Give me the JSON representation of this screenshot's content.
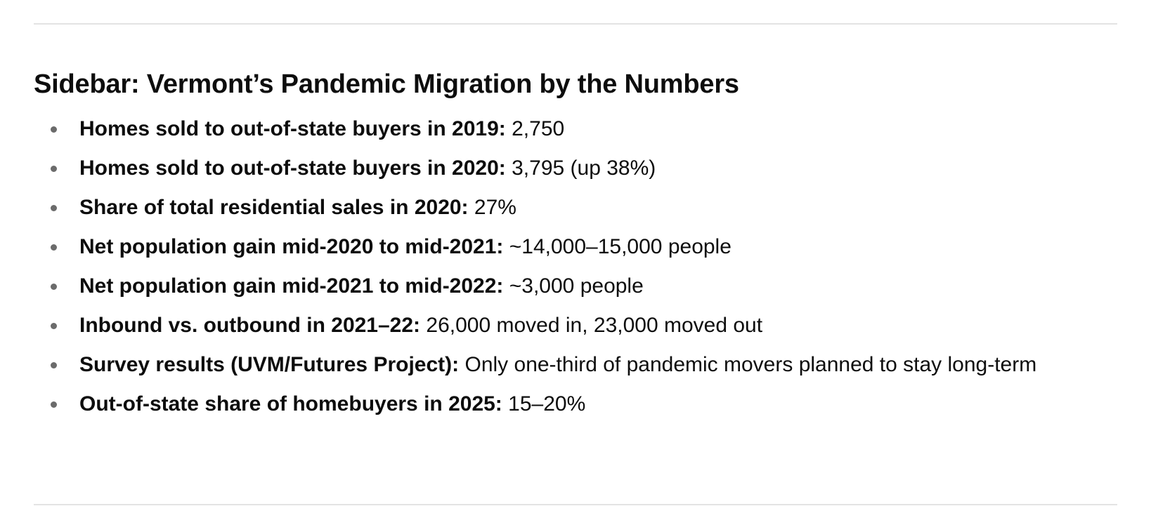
{
  "sidebar": {
    "title": "Sidebar: Vermont’s Pandemic Migration by the Numbers",
    "items": [
      {
        "label": "Homes sold to out-of-state buyers in 2019:",
        "value": "2,750"
      },
      {
        "label": "Homes sold to out-of-state buyers in 2020:",
        "value": "3,795 (up 38%)"
      },
      {
        "label": "Share of total residential sales in 2020:",
        "value": "27%"
      },
      {
        "label": "Net population gain mid-2020 to mid-2021:",
        "value": "~14,000–15,000 people"
      },
      {
        "label": "Net population gain mid-2021 to mid-2022:",
        "value": "~3,000 people"
      },
      {
        "label": "Inbound vs. outbound in 2021–22:",
        "value": "26,000 moved in, 23,000 moved out"
      },
      {
        "label": "Survey results (UVM/Futures Project):",
        "value": "Only one-third of pandemic movers planned to stay long-term"
      },
      {
        "label": "Out-of-state share of homebuyers in 2025:",
        "value": "15–20%"
      }
    ]
  }
}
